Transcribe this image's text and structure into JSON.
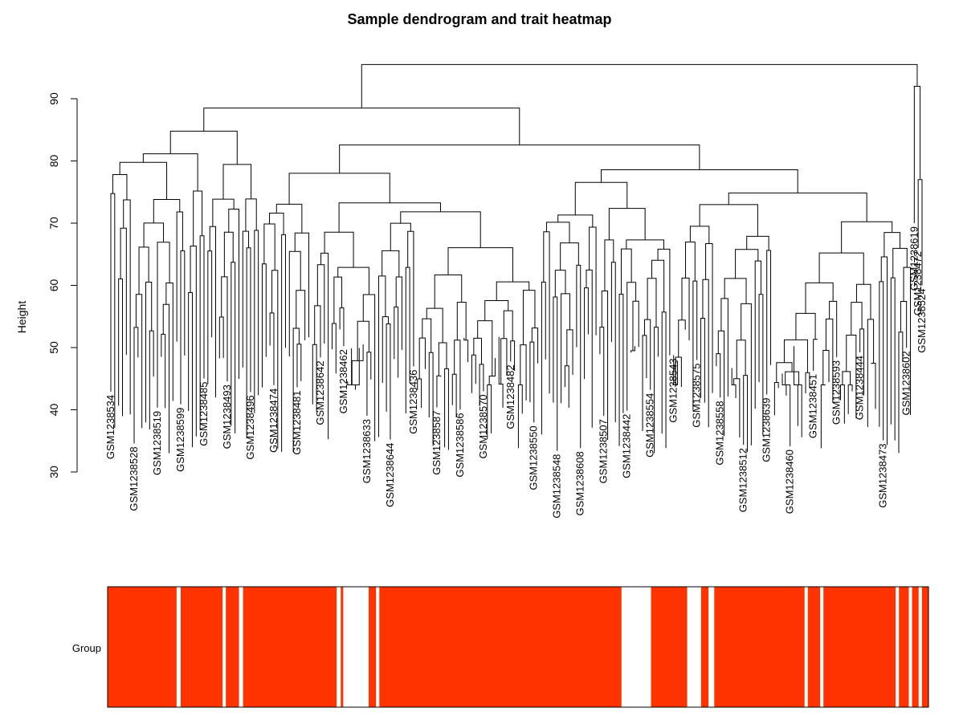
{
  "title": "Sample dendrogram and trait heatmap",
  "chart_data": {
    "type": "dendrogram_heatmap",
    "title": "Sample dendrogram and trait heatmap",
    "ylabel": "Height",
    "ylim": [
      30,
      97
    ],
    "y_ticks": [
      30,
      40,
      50,
      60,
      70,
      80,
      90
    ],
    "dendrogram": {
      "root_height": 95.5,
      "main_cluster_height": 88.5,
      "right_cluster_height": 92,
      "right_cluster_leaves": [
        "GSM1238619",
        "GSM1238472",
        "GSM1238524"
      ],
      "readable_leaf_labels": [
        "GSM1238534",
        "GSM1238528",
        "GSM1238519",
        "GSM1238599",
        "GSM1238485",
        "GSM1238493",
        "GSM1238496",
        "GSM1238474",
        "GSM1238481",
        "GSM1238642",
        "GSM1238462",
        "GSM1238633",
        "GSM1238644",
        "GSM1238436",
        "GSM1238587",
        "GSM1238586",
        "GSM1238570",
        "GSM1238482",
        "GSM1238550",
        "GSM1238548",
        "GSM1238608",
        "GSM1238507",
        "GSM1238442",
        "GSM1238554",
        "GSM1238543",
        "GSM1238575",
        "GSM1238558",
        "GSM1238512",
        "GSM1238639",
        "GSM1238460",
        "GSM1238451",
        "GSM1238593",
        "GSM1238444",
        "GSM1238473",
        "GSM1238602"
      ]
    },
    "trait_heatmap": {
      "row_label": "Group",
      "color_present": "#ff3300",
      "color_absent": "#ffffff",
      "white_bands_percent": [
        [
          8.4,
          8.9
        ],
        [
          14.0,
          14.4
        ],
        [
          16.0,
          16.5
        ],
        [
          27.9,
          28.4
        ],
        [
          28.7,
          31.8
        ],
        [
          32.7,
          33.1
        ],
        [
          62.6,
          66.2
        ],
        [
          70.6,
          72.3
        ],
        [
          73.2,
          73.9
        ],
        [
          84.9,
          85.3
        ],
        [
          86.8,
          87.2
        ],
        [
          96.0,
          96.4
        ],
        [
          97.6,
          98.0
        ],
        [
          98.8,
          99.2
        ]
      ]
    }
  }
}
